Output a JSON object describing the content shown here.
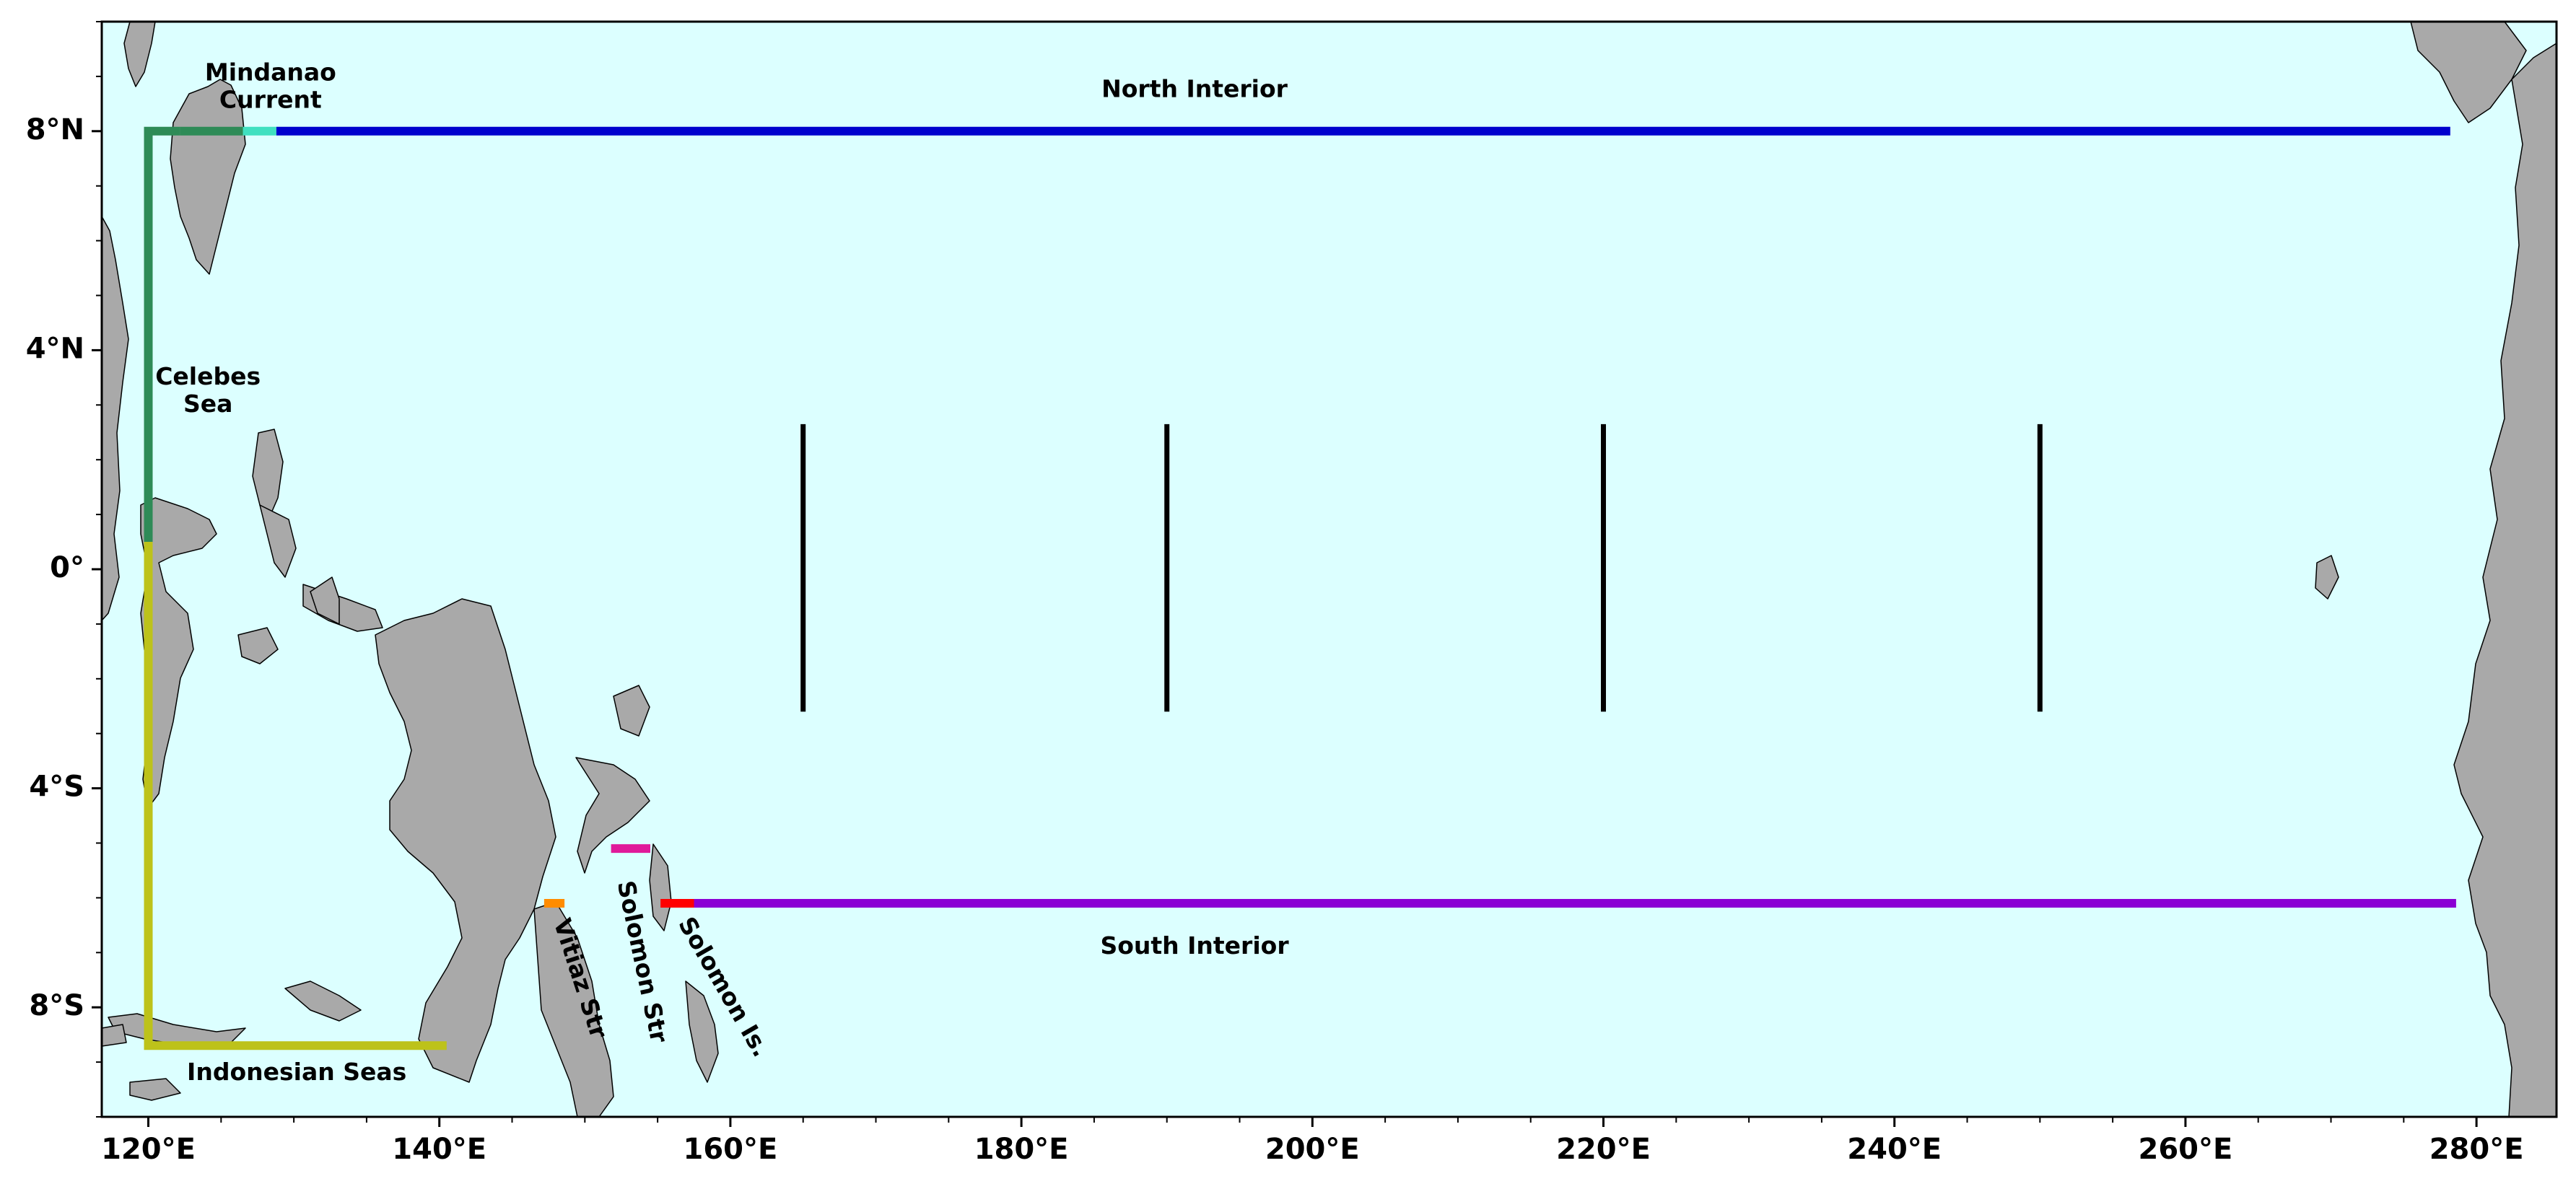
{
  "map": {
    "projection": "equirectangular",
    "lon_range": [
      116.8,
      285.5
    ],
    "lat_range": [
      -10.0,
      10.0
    ],
    "colors": {
      "ocean": "#dcffff",
      "land": "#a9a9a9",
      "coastline": "#000000"
    },
    "x_ticks": [
      {
        "lon": 120,
        "label": "120°E"
      },
      {
        "lon": 140,
        "label": "140°E"
      },
      {
        "lon": 160,
        "label": "160°E"
      },
      {
        "lon": 180,
        "label": "180°E"
      },
      {
        "lon": 200,
        "label": "200°E"
      },
      {
        "lon": 220,
        "label": "220°E"
      },
      {
        "lon": 240,
        "label": "240°E"
      },
      {
        "lon": 260,
        "label": "260°E"
      },
      {
        "lon": 280,
        "label": "280°E"
      }
    ],
    "y_ticks": [
      {
        "lat": 8,
        "label": "8°N"
      },
      {
        "lat": 4,
        "label": "4°N"
      },
      {
        "lat": 0,
        "label": "0°"
      },
      {
        "lat": -4,
        "label": "4°S"
      },
      {
        "lat": -8,
        "label": "8°S"
      }
    ],
    "sections": [
      {
        "id": "celebes",
        "color": "#2e8b57",
        "points": [
          [
            120,
            0
          ],
          [
            120,
            8
          ],
          [
            122.2,
            8
          ]
        ]
      },
      {
        "id": "mindanao",
        "color": "#2e8b57",
        "points": [
          [
            122.2,
            8
          ],
          [
            126.5,
            8
          ]
        ]
      },
      {
        "id": "mindanao-current",
        "color": "#40e0c0",
        "points": [
          [
            126.5,
            8
          ],
          [
            128.8,
            8
          ]
        ]
      },
      {
        "id": "north-interior",
        "color": "#0000cd",
        "points": [
          [
            128.8,
            8
          ],
          [
            278.2,
            8
          ]
        ]
      },
      {
        "id": "indonesian-seas",
        "color": "#bdc21a",
        "points": [
          [
            120,
            0.5
          ],
          [
            120,
            -8.7
          ],
          [
            140.5,
            -8.7
          ]
        ]
      },
      {
        "id": "vitiaz-strait",
        "color": "#ff8c00",
        "points": [
          [
            147.2,
            -6.1
          ],
          [
            148.6,
            -6.1
          ]
        ]
      },
      {
        "id": "solomon-strait",
        "color": "#e01a9a",
        "points": [
          [
            151.8,
            -5.1
          ],
          [
            154.5,
            -5.1
          ]
        ]
      },
      {
        "id": "solomon-islands",
        "color": "#ff0000",
        "points": [
          [
            155.2,
            -6.1
          ],
          [
            157.5,
            -6.1
          ]
        ]
      },
      {
        "id": "south-interior",
        "color": "#8b00d4",
        "points": [
          [
            157.5,
            -6.1
          ],
          [
            278.6,
            -6.1
          ]
        ]
      }
    ],
    "meridians": [
      {
        "lon": 165,
        "lat_top": 2.65,
        "lat_bottom": -2.6
      },
      {
        "lon": 190,
        "lat_top": 2.65,
        "lat_bottom": -2.6
      },
      {
        "lon": 220,
        "lat_top": 2.65,
        "lat_bottom": -2.6
      },
      {
        "lon": 250,
        "lat_top": 2.65,
        "lat_bottom": -2.6
      }
    ],
    "annotations": [
      {
        "lines": [
          "Mindanao",
          "Current"
        ],
        "lon": 128.4,
        "lat": 9.05,
        "rotate": 0
      },
      {
        "lines": [
          "North Interior"
        ],
        "lon": 191.9,
        "lat": 8.75,
        "rotate": 0
      },
      {
        "lines": [
          "Celebes",
          "Sea"
        ],
        "lon": 124.1,
        "lat": 3.5,
        "rotate": 0
      },
      {
        "lines": [
          "Indonesian Seas"
        ],
        "lon": 130.2,
        "lat": -9.2,
        "rotate": 0
      },
      {
        "lines": [
          "Vitiaz Str"
        ],
        "lon": 148.3,
        "lat": -6.4,
        "rotate": 72
      },
      {
        "lines": [
          "Solomon Str"
        ],
        "lon": 152.7,
        "lat": -5.7,
        "rotate": 78
      },
      {
        "lines": [
          "Solomon Is."
        ],
        "lon": 156.8,
        "lat": -6.4,
        "rotate": 60
      },
      {
        "lines": [
          "South Interior"
        ],
        "lon": 191.9,
        "lat": -6.9,
        "rotate": 0
      }
    ]
  }
}
